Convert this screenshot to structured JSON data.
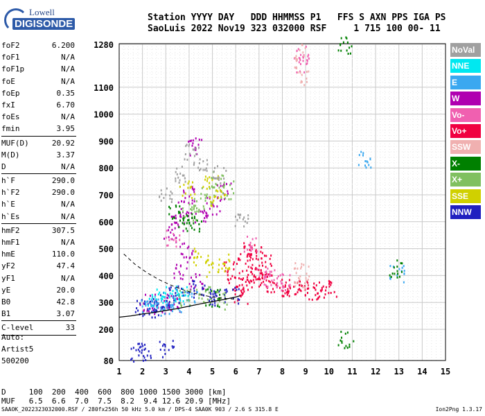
{
  "logo": {
    "brand": "Lowell",
    "product": "DIGISONDE"
  },
  "header": {
    "line1": "Station YYYY DAY   DDD HHMMSS P1   FFS S AXN PPS IGA PS",
    "line2": "SaoLuis 2022 Nov19 323 032000 RSF     1 715 100 00- 11"
  },
  "params_groups": [
    [
      [
        "foF2",
        "6.200"
      ],
      [
        "foF1",
        "N/A"
      ],
      [
        "foF1p",
        "N/A"
      ],
      [
        "foE",
        "N/A"
      ],
      [
        "foEp",
        "0.35"
      ],
      [
        "fxI",
        "6.70"
      ],
      [
        "foEs",
        "N/A"
      ],
      [
        "fmin",
        "3.95"
      ]
    ],
    [
      [
        "MUF(D)",
        "20.92"
      ],
      [
        "M(D)",
        "3.37"
      ],
      [
        "D",
        "N/A"
      ]
    ],
    [
      [
        "h`F",
        "290.0"
      ],
      [
        "h`F2",
        "290.0"
      ],
      [
        "h`E",
        "N/A"
      ],
      [
        "h`Es",
        "N/A"
      ]
    ],
    [
      [
        "hmF2",
        "307.5"
      ],
      [
        "hmF1",
        "N/A"
      ],
      [
        "hmE",
        "110.0"
      ],
      [
        "yF2",
        "47.4"
      ],
      [
        "yF1",
        "N/A"
      ],
      [
        "yE",
        "20.0"
      ],
      [
        "B0",
        "42.8"
      ],
      [
        "B1",
        "3.07"
      ]
    ],
    [
      [
        "C-level",
        "33"
      ]
    ]
  ],
  "misc": {
    "auto": "Auto:",
    "artist": "Artist5",
    "version": "500200"
  },
  "legend": [
    {
      "label": "NoVal",
      "color": "#a0a0a0"
    },
    {
      "label": "NNE",
      "color": "#00e8f0"
    },
    {
      "label": "E",
      "color": "#3aa8f0"
    },
    {
      "label": "W",
      "color": "#b000b0"
    },
    {
      "label": "Vo-",
      "color": "#f060b0"
    },
    {
      "label": "Vo+",
      "color": "#f00040"
    },
    {
      "label": "SSW",
      "color": "#f0b0b0"
    },
    {
      "label": "X-",
      "color": "#008000"
    },
    {
      "label": "X+",
      "color": "#80c060"
    },
    {
      "label": "SSE",
      "color": "#d0d000"
    },
    {
      "label": "NNW",
      "color": "#2020c0"
    }
  ],
  "chart_data": {
    "type": "scatter",
    "x_ticks": [
      "1",
      "2",
      "3",
      "4",
      "5",
      "6",
      "7",
      "8",
      "9",
      "10",
      "11",
      "12",
      "13",
      "14",
      "15"
    ],
    "y_ticks": [
      "80",
      "200",
      "300",
      "400",
      "500",
      "600",
      "700",
      "800",
      "900",
      "1000",
      "1100",
      "1280"
    ],
    "xlim": [
      1,
      15
    ],
    "ylim": [
      80,
      1280
    ],
    "grid": true,
    "series": [
      {
        "name": "Vo+",
        "color": "#f00040",
        "points": [
          [
            6.2,
            330
          ],
          [
            6.5,
            370
          ],
          [
            6.8,
            400
          ],
          [
            7.0,
            420
          ],
          [
            7.3,
            380
          ],
          [
            7.6,
            370
          ],
          [
            8.0,
            360
          ],
          [
            8.4,
            355
          ],
          [
            8.8,
            350
          ],
          [
            9.2,
            345
          ],
          [
            9.6,
            350
          ],
          [
            10.0,
            350
          ],
          [
            6.4,
            450
          ],
          [
            6.6,
            500
          ],
          [
            6.9,
            480
          ],
          [
            7.2,
            460
          ],
          [
            5.8,
            420
          ],
          [
            6.0,
            380
          ]
        ]
      },
      {
        "name": "W",
        "color": "#b000b0",
        "points": [
          [
            3.2,
            560
          ],
          [
            3.5,
            600
          ],
          [
            3.8,
            650
          ],
          [
            4.0,
            700
          ],
          [
            4.2,
            880
          ],
          [
            3.9,
            500
          ],
          [
            4.5,
            620
          ],
          [
            5.0,
            660
          ],
          [
            5.5,
            720
          ],
          [
            3.6,
            420
          ],
          [
            4.3,
            380
          ],
          [
            2.2,
            300
          ],
          [
            2.8,
            290
          ],
          [
            3.3,
            300
          ]
        ]
      },
      {
        "name": "NNW",
        "color": "#2020c0",
        "points": [
          [
            2.0,
            280
          ],
          [
            2.3,
            290
          ],
          [
            2.6,
            270
          ],
          [
            3.0,
            310
          ],
          [
            3.4,
            330
          ],
          [
            4.0,
            350
          ],
          [
            4.8,
            340
          ],
          [
            5.2,
            320
          ],
          [
            5.8,
            330
          ],
          [
            1.8,
            110
          ],
          [
            2.1,
            115
          ],
          [
            3.0,
            125
          ]
        ]
      },
      {
        "name": "E",
        "color": "#3aa8f0",
        "points": [
          [
            2.2,
            300
          ],
          [
            2.6,
            290
          ],
          [
            3.0,
            280
          ],
          [
            3.5,
            300
          ],
          [
            4.0,
            310
          ],
          [
            12.9,
            410
          ],
          [
            11.5,
            830
          ]
        ]
      },
      {
        "name": "X+",
        "color": "#80c060",
        "points": [
          [
            4.0,
            640
          ],
          [
            4.4,
            660
          ],
          [
            4.8,
            700
          ],
          [
            5.2,
            760
          ],
          [
            5.6,
            720
          ],
          [
            3.8,
            320
          ],
          [
            4.6,
            330
          ],
          [
            5.4,
            310
          ]
        ]
      },
      {
        "name": "SSE",
        "color": "#d0d000",
        "points": [
          [
            5.0,
            430
          ],
          [
            5.5,
            450
          ],
          [
            4.5,
            470
          ],
          [
            5.2,
            690
          ],
          [
            4.9,
            740
          ],
          [
            3.9,
            720
          ]
        ]
      },
      {
        "name": "X-",
        "color": "#008000",
        "points": [
          [
            3.4,
            640
          ],
          [
            3.8,
            600
          ],
          [
            4.2,
            600
          ],
          [
            5.0,
            320
          ],
          [
            10.7,
            1280
          ],
          [
            10.7,
            160
          ],
          [
            12.9,
            430
          ]
        ]
      },
      {
        "name": "NNE",
        "color": "#00e8f0",
        "points": [
          [
            2.5,
            320
          ],
          [
            3.1,
            330
          ],
          [
            3.7,
            340
          ]
        ]
      },
      {
        "name": "Vo-",
        "color": "#f060b0",
        "points": [
          [
            7.2,
            400
          ],
          [
            7.6,
            390
          ],
          [
            8.0,
            380
          ],
          [
            8.8,
            1240
          ],
          [
            8.8,
            1200
          ],
          [
            6.6,
            520
          ],
          [
            3.3,
            540
          ]
        ]
      },
      {
        "name": "SSW",
        "color": "#f0b0b0",
        "points": [
          [
            8.8,
            1250
          ],
          [
            8.8,
            1150
          ],
          [
            8.8,
            420
          ],
          [
            8.8,
            380
          ]
        ]
      },
      {
        "name": "NoVal",
        "color": "#a0a0a0",
        "points": [
          [
            4.1,
            860
          ],
          [
            4.5,
            820
          ],
          [
            5.3,
            780
          ],
          [
            6.2,
            600
          ],
          [
            3.0,
            700
          ],
          [
            3.6,
            780
          ]
        ]
      }
    ],
    "profile": {
      "x": [
        1.0,
        1.5,
        2.0,
        2.5,
        3.0,
        3.5,
        4.0,
        4.5,
        5.0,
        5.5,
        6.0,
        6.2
      ],
      "y": [
        245,
        250,
        257,
        263,
        270,
        277,
        286,
        295,
        303,
        311,
        320,
        325
      ]
    },
    "dashed_curve": {
      "x": [
        1.2,
        1.7,
        2.2,
        2.7,
        3.2,
        3.8,
        4.4,
        5.0,
        5.5,
        6.0
      ],
      "y": [
        480,
        440,
        410,
        385,
        365,
        345,
        330,
        320,
        315,
        312
      ]
    }
  },
  "bottom": {
    "d_line": "D     100  200  400  600  800 1000 1500 3000 [km]",
    "muf_line": "MUF   6.5  6.6  7.0  7.5  8.2  9.4 12.6 20.9 [MHz]",
    "footer": "SAAOK_2022323032000.RSF / 280fx256h 50 kHz 5.0 km / DPS-4 SAA0K 903 / 2.6 S 315.8 E",
    "footer_right": "Ion2Png 1.3.17"
  }
}
